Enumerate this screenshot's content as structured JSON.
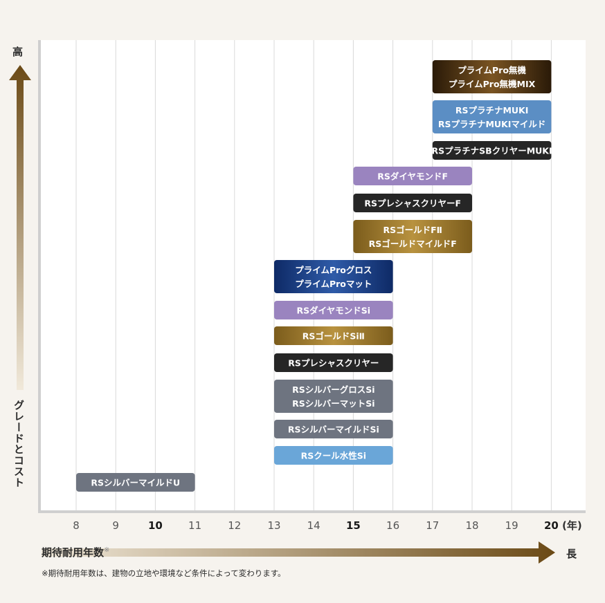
{
  "chart_data": {
    "type": "bar",
    "orientation": "horizontal-range",
    "y_axis_top_label": "高",
    "y_axis_label": "グレードとコスト",
    "x_axis_label": "期待耐用年数",
    "x_axis_label_mark": "※",
    "x_axis_end_label": "長",
    "x_unit": "(年)",
    "note": "※期待耐用年数は、建物の立地や環境など条件によって変わります。",
    "x_ticks": [
      8,
      9,
      10,
      11,
      12,
      13,
      14,
      15,
      16,
      17,
      18,
      19,
      20
    ],
    "bold_ticks": [
      10,
      15,
      20
    ],
    "xlim": [
      7.0,
      20.9
    ],
    "grid": true,
    "series": [
      {
        "lines": [
          "プライムPro無機",
          "プライムPro無機MIX"
        ],
        "start": 17,
        "end": 20,
        "color": "#4a2f10"
      },
      {
        "lines": [
          "RSプラチナMUKI",
          "RSプラチナMUKIマイルド"
        ],
        "start": 17,
        "end": 20,
        "color": "#5b8ec4"
      },
      {
        "lines": [
          "RSプラチナSBクリヤーMUKI"
        ],
        "start": 17,
        "end": 20,
        "color": "#262626"
      },
      {
        "lines": [
          "RSダイヤモンドF"
        ],
        "start": 15,
        "end": 18,
        "color": "#9a84bf"
      },
      {
        "lines": [
          "RSプレシャスクリヤーF"
        ],
        "start": 15,
        "end": 18,
        "color": "#262626"
      },
      {
        "lines": [
          "RSゴールドFⅡ",
          "RSゴールドマイルドF"
        ],
        "start": 15,
        "end": 18,
        "color": "#9c7a2c"
      },
      {
        "lines": [
          "プライムProグロス",
          "プライムProマット"
        ],
        "start": 13,
        "end": 16,
        "color": "#1d3f80"
      },
      {
        "lines": [
          "RSダイヤモンドSi"
        ],
        "start": 13,
        "end": 16,
        "color": "#9a84bf"
      },
      {
        "lines": [
          "RSゴールドSiⅡ"
        ],
        "start": 13,
        "end": 16,
        "color": "#9c7a2c"
      },
      {
        "lines": [
          "RSプレシャスクリヤー"
        ],
        "start": 13,
        "end": 16,
        "color": "#262626"
      },
      {
        "lines": [
          "RSシルバーグロスSi",
          "RSシルバーマットSi"
        ],
        "start": 13,
        "end": 16,
        "color": "#6e7480"
      },
      {
        "lines": [
          "RSシルバーマイルドSi"
        ],
        "start": 13,
        "end": 16,
        "color": "#6e7480"
      },
      {
        "lines": [
          "RSクール水性Si"
        ],
        "start": 13,
        "end": 16,
        "color": "#6aa6d8"
      },
      {
        "lines": [
          "RSシルバーマイルドU"
        ],
        "start": 8,
        "end": 11,
        "color": "#6e7480"
      }
    ]
  }
}
